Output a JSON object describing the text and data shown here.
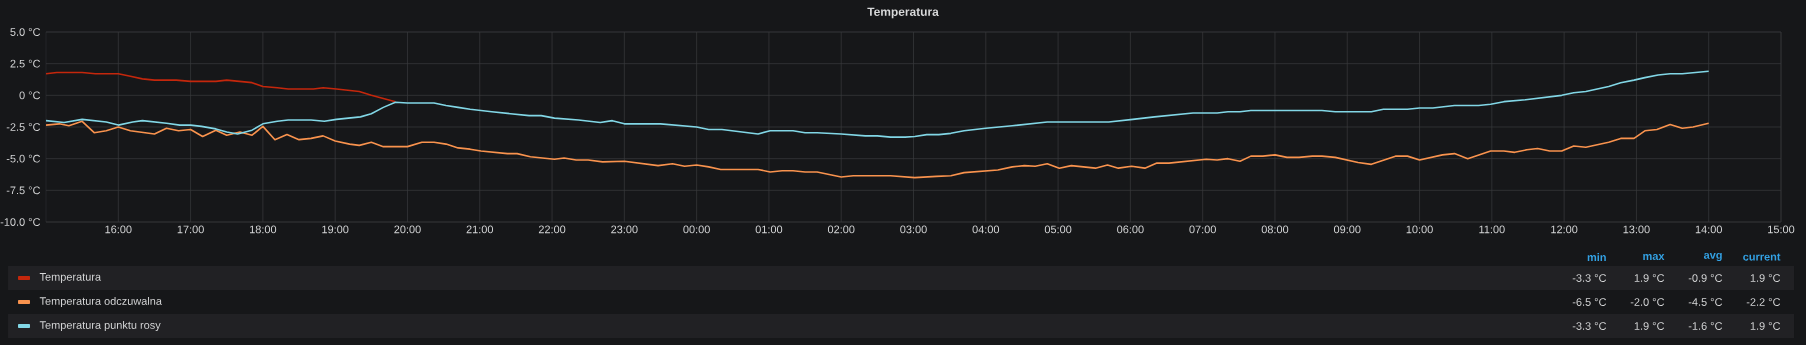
{
  "chart_data": {
    "type": "line",
    "title": "Temperatura",
    "xlim": [
      "2000-01-01T15:00",
      "2000-01-02T15:00"
    ],
    "ylim": [
      -10,
      5
    ],
    "xticks": [
      {
        "value": "2000-01-01T16:00",
        "label": "16:00"
      },
      {
        "value": "2000-01-01T17:00",
        "label": "17:00"
      },
      {
        "value": "2000-01-01T18:00",
        "label": "18:00"
      },
      {
        "value": "2000-01-01T19:00",
        "label": "19:00"
      },
      {
        "value": "2000-01-01T20:00",
        "label": "20:00"
      },
      {
        "value": "2000-01-01T21:00",
        "label": "21:00"
      },
      {
        "value": "2000-01-01T22:00",
        "label": "22:00"
      },
      {
        "value": "2000-01-01T23:00",
        "label": "23:00"
      },
      {
        "value": "2000-01-02T00:00",
        "label": "00:00"
      },
      {
        "value": "2000-01-02T01:00",
        "label": "01:00"
      },
      {
        "value": "2000-01-02T02:00",
        "label": "02:00"
      },
      {
        "value": "2000-01-02T03:00",
        "label": "03:00"
      },
      {
        "value": "2000-01-02T04:00",
        "label": "04:00"
      },
      {
        "value": "2000-01-02T05:00",
        "label": "05:00"
      },
      {
        "value": "2000-01-02T06:00",
        "label": "06:00"
      },
      {
        "value": "2000-01-02T07:00",
        "label": "07:00"
      },
      {
        "value": "2000-01-02T08:00",
        "label": "08:00"
      },
      {
        "value": "2000-01-02T09:00",
        "label": "09:00"
      },
      {
        "value": "2000-01-02T10:00",
        "label": "10:00"
      },
      {
        "value": "2000-01-02T11:00",
        "label": "11:00"
      },
      {
        "value": "2000-01-02T12:00",
        "label": "12:00"
      },
      {
        "value": "2000-01-02T13:00",
        "label": "13:00"
      },
      {
        "value": "2000-01-02T14:00",
        "label": "14:00"
      },
      {
        "value": "2000-01-02T15:00",
        "label": "15:00"
      }
    ],
    "yticks": [
      {
        "value": 5,
        "label": "5.0 °C"
      },
      {
        "value": 2.5,
        "label": "2.5 °C"
      },
      {
        "value": 0,
        "label": "0 °C"
      },
      {
        "value": -2.5,
        "label": "-2.5 °C"
      },
      {
        "value": -5,
        "label": "-5.0 °C"
      },
      {
        "value": -7.5,
        "label": "-7.5 °C"
      },
      {
        "value": -10,
        "label": "-10.0 °C"
      }
    ],
    "grid": true,
    "legend": "bottom",
    "marker": "none",
    "line_style": "solid",
    "series": [
      {
        "name": "Temperatura",
        "color": "#c4270c",
        "x": [
          "2000-01-01T15:00",
          "2000-01-01T15:09",
          "2000-01-01T15:30",
          "2000-01-01T15:41",
          "2000-01-01T16:00",
          "2000-01-01T16:10",
          "2000-01-01T16:20",
          "2000-01-01T16:30",
          "2000-01-01T16:48",
          "2000-01-01T17:00",
          "2000-01-01T17:21",
          "2000-01-01T17:30",
          "2000-01-01T17:51",
          "2000-01-01T18:00",
          "2000-01-01T18:12",
          "2000-01-01T18:21",
          "2000-01-01T18:42",
          "2000-01-01T18:50",
          "2000-01-01T19:01",
          "2000-01-01T19:20",
          "2000-01-01T19:30",
          "2000-01-01T19:40",
          "2000-01-01T19:50"
        ],
        "values": [
          1.7,
          1.8,
          1.8,
          1.7,
          1.7,
          1.5,
          1.3,
          1.2,
          1.2,
          1.1,
          1.1,
          1.2,
          1.0,
          0.7,
          0.6,
          0.5,
          0.5,
          0.6,
          0.5,
          0.3,
          0.0,
          -0.25,
          -0.5
        ]
      },
      {
        "name": "Temperatura odczuwalna",
        "color": "#f9934e",
        "x": [
          "2000-01-01T15:00",
          "2000-01-01T15:11",
          "2000-01-01T15:19",
          "2000-01-01T15:30",
          "2000-01-01T15:40",
          "2000-01-01T15:50",
          "2000-01-01T16:00",
          "2000-01-01T16:10",
          "2000-01-01T16:30",
          "2000-01-01T16:40",
          "2000-01-01T16:50",
          "2000-01-01T17:00",
          "2000-01-01T17:10",
          "2000-01-01T17:21",
          "2000-01-01T17:30",
          "2000-01-01T17:41",
          "2000-01-01T17:51",
          "2000-01-01T18:00",
          "2000-01-01T18:10",
          "2000-01-01T18:20",
          "2000-01-01T18:30",
          "2000-01-01T18:40",
          "2000-01-01T18:50",
          "2000-01-01T19:00",
          "2000-01-01T19:12",
          "2000-01-01T19:20",
          "2000-01-01T19:30",
          "2000-01-01T19:40",
          "2000-01-01T20:00",
          "2000-01-01T20:12",
          "2000-01-01T20:22",
          "2000-01-01T20:32",
          "2000-01-01T20:42",
          "2000-01-01T20:52",
          "2000-01-01T21:01",
          "2000-01-01T21:23",
          "2000-01-01T21:31",
          "2000-01-01T21:42",
          "2000-01-01T22:02",
          "2000-01-01T22:10",
          "2000-01-01T22:20",
          "2000-01-01T22:30",
          "2000-01-01T22:42",
          "2000-01-01T23:00",
          "2000-01-01T23:28",
          "2000-01-01T23:40",
          "2000-01-01T23:50",
          "2000-01-02T00:00",
          "2000-01-02T00:10",
          "2000-01-02T00:20",
          "2000-01-02T00:51",
          "2000-01-02T01:01",
          "2000-01-02T01:11",
          "2000-01-02T01:20",
          "2000-01-02T01:30",
          "2000-01-02T01:40",
          "2000-01-02T02:00",
          "2000-01-02T02:10",
          "2000-01-02T02:41",
          "2000-01-02T03:01",
          "2000-01-02T03:19",
          "2000-01-02T03:31",
          "2000-01-02T03:42",
          "2000-01-02T04:10",
          "2000-01-02T04:22",
          "2000-01-02T04:32",
          "2000-01-02T04:41",
          "2000-01-02T04:51",
          "2000-01-02T05:01",
          "2000-01-02T05:11",
          "2000-01-02T05:31",
          "2000-01-02T05:41",
          "2000-01-02T05:50",
          "2000-01-02T06:01",
          "2000-01-02T06:12",
          "2000-01-02T06:22",
          "2000-01-02T06:32",
          "2000-01-02T07:03",
          "2000-01-02T07:12",
          "2000-01-02T07:21",
          "2000-01-02T07:31",
          "2000-01-02T07:40",
          "2000-01-02T07:50",
          "2000-01-02T08:00",
          "2000-01-02T08:10",
          "2000-01-02T08:20",
          "2000-01-02T08:31",
          "2000-01-02T08:39",
          "2000-01-02T08:50",
          "2000-01-02T09:09",
          "2000-01-02T09:20",
          "2000-01-02T09:40",
          "2000-01-02T09:50",
          "2000-01-02T10:00",
          "2000-01-02T10:19",
          "2000-01-02T10:29",
          "2000-01-02T10:40",
          "2000-01-02T10:59",
          "2000-01-02T11:10",
          "2000-01-02T11:19",
          "2000-01-02T11:29",
          "2000-01-02T11:38",
          "2000-01-02T11:48",
          "2000-01-02T11:58",
          "2000-01-02T12:08",
          "2000-01-02T12:18",
          "2000-01-02T12:37",
          "2000-01-02T12:47",
          "2000-01-02T12:58",
          "2000-01-02T13:07",
          "2000-01-02T13:17",
          "2000-01-02T13:28",
          "2000-01-02T13:38",
          "2000-01-02T13:47",
          "2000-01-02T14:00"
        ],
        "values": [
          -2.35,
          -2.25,
          -2.4,
          -2.05,
          -2.95,
          -2.8,
          -2.5,
          -2.8,
          -3.05,
          -2.6,
          -2.8,
          -2.7,
          -3.25,
          -2.75,
          -3.15,
          -2.9,
          -3.15,
          -2.45,
          -3.5,
          -3.1,
          -3.5,
          -3.4,
          -3.2,
          -3.6,
          -3.85,
          -3.95,
          -3.7,
          -4.05,
          -4.05,
          -3.7,
          -3.7,
          -3.85,
          -4.15,
          -4.25,
          -4.4,
          -4.6,
          -4.6,
          -4.85,
          -5.05,
          -4.95,
          -5.1,
          -5.1,
          -5.25,
          -5.2,
          -5.55,
          -5.4,
          -5.6,
          -5.5,
          -5.65,
          -5.85,
          -5.85,
          -6.05,
          -5.95,
          -5.95,
          -6.05,
          -6.05,
          -6.45,
          -6.35,
          -6.35,
          -6.5,
          -6.4,
          -6.35,
          -6.1,
          -5.9,
          -5.65,
          -5.55,
          -5.6,
          -5.4,
          -5.75,
          -5.55,
          -5.75,
          -5.5,
          -5.75,
          -5.6,
          -5.75,
          -5.35,
          -5.35,
          -5.05,
          -5.1,
          -5.0,
          -5.2,
          -4.8,
          -4.8,
          -4.7,
          -4.9,
          -4.9,
          -4.8,
          -4.8,
          -4.9,
          -5.3,
          -5.45,
          -4.8,
          -4.8,
          -5.1,
          -4.7,
          -4.6,
          -5.0,
          -4.4,
          -4.4,
          -4.5,
          -4.3,
          -4.2,
          -4.4,
          -4.4,
          -4.0,
          -4.1,
          -3.7,
          -3.4,
          -3.4,
          -2.8,
          -2.7,
          -2.3,
          -2.6,
          -2.5,
          -2.2
        ]
      },
      {
        "name": "Temperatura punktu rosy",
        "color": "#82d7e6",
        "x": [
          "2000-01-01T15:00",
          "2000-01-01T15:15",
          "2000-01-01T15:30",
          "2000-01-01T15:50",
          "2000-01-01T16:00",
          "2000-01-01T16:12",
          "2000-01-01T16:20",
          "2000-01-01T16:40",
          "2000-01-01T16:51",
          "2000-01-01T17:00",
          "2000-01-01T17:09",
          "2000-01-01T17:21",
          "2000-01-01T17:30",
          "2000-01-01T17:39",
          "2000-01-01T17:51",
          "2000-01-01T18:00",
          "2000-01-01T18:12",
          "2000-01-01T18:21",
          "2000-01-01T18:40",
          "2000-01-01T18:51",
          "2000-01-01T19:01",
          "2000-01-01T19:21",
          "2000-01-01T19:30",
          "2000-01-01T19:40",
          "2000-01-01T19:50",
          "2000-01-01T20:00",
          "2000-01-01T20:22",
          "2000-01-01T20:32",
          "2000-01-01T20:42",
          "2000-01-01T20:52",
          "2000-01-01T21:10",
          "2000-01-01T21:41",
          "2000-01-01T21:51",
          "2000-01-01T22:02",
          "2000-01-01T22:22",
          "2000-01-01T22:40",
          "2000-01-01T22:50",
          "2000-01-01T23:00",
          "2000-01-01T23:30",
          "2000-01-02T00:00",
          "2000-01-02T00:10",
          "2000-01-02T00:21",
          "2000-01-02T00:51",
          "2000-01-02T01:01",
          "2000-01-02T01:20",
          "2000-01-02T01:30",
          "2000-01-02T01:40",
          "2000-01-02T02:00",
          "2000-01-02T02:20",
          "2000-01-02T02:30",
          "2000-01-02T02:41",
          "2000-01-02T02:53",
          "2000-01-02T03:01",
          "2000-01-02T03:11",
          "2000-01-02T03:21",
          "2000-01-02T03:31",
          "2000-01-02T03:42",
          "2000-01-02T04:00",
          "2000-01-02T04:22",
          "2000-01-02T04:51",
          "2000-01-02T05:42",
          "2000-01-02T06:02",
          "2000-01-02T06:20",
          "2000-01-02T06:52",
          "2000-01-02T07:12",
          "2000-01-02T07:21",
          "2000-01-02T07:31",
          "2000-01-02T07:40",
          "2000-01-02T08:39",
          "2000-01-02T08:50",
          "2000-01-02T09:20",
          "2000-01-02T09:30",
          "2000-01-02T09:50",
          "2000-01-02T10:00",
          "2000-01-02T10:11",
          "2000-01-02T10:29",
          "2000-01-02T10:49",
          "2000-01-02T10:59",
          "2000-01-02T11:10",
          "2000-01-02T11:28",
          "2000-01-02T11:58",
          "2000-01-02T12:08",
          "2000-01-02T12:18",
          "2000-01-02T12:37",
          "2000-01-02T12:47",
          "2000-01-02T12:58",
          "2000-01-02T13:07",
          "2000-01-02T13:18",
          "2000-01-02T13:28",
          "2000-01-02T13:38",
          "2000-01-02T14:00"
        ],
        "values": [
          -2.0,
          -2.15,
          -1.9,
          -2.1,
          -2.35,
          -2.1,
          -2.0,
          -2.2,
          -2.35,
          -2.35,
          -2.45,
          -2.65,
          -2.9,
          -3.05,
          -2.75,
          -2.25,
          -2.05,
          -1.95,
          -1.95,
          -2.05,
          -1.9,
          -1.7,
          -1.45,
          -0.95,
          -0.55,
          -0.6,
          -0.6,
          -0.8,
          -0.95,
          -1.1,
          -1.3,
          -1.6,
          -1.6,
          -1.8,
          -1.95,
          -2.15,
          -2.0,
          -2.25,
          -2.25,
          -2.5,
          -2.7,
          -2.7,
          -3.05,
          -2.8,
          -2.8,
          -2.95,
          -2.95,
          -3.05,
          -3.2,
          -3.2,
          -3.3,
          -3.3,
          -3.25,
          -3.1,
          -3.1,
          -3.0,
          -2.8,
          -2.6,
          -2.4,
          -2.1,
          -2.1,
          -1.9,
          -1.7,
          -1.4,
          -1.4,
          -1.3,
          -1.3,
          -1.2,
          -1.2,
          -1.3,
          -1.3,
          -1.1,
          -1.1,
          -1.0,
          -1.0,
          -0.8,
          -0.8,
          -0.7,
          -0.5,
          -0.35,
          0.0,
          0.2,
          0.3,
          0.7,
          1.0,
          1.2,
          1.4,
          1.6,
          1.7,
          1.7,
          1.9
        ]
      }
    ],
    "annotations": [
      "min",
      "max",
      "avg",
      "current",
      "-3.3 °C",
      "1.9 °C",
      "-0.9 °C",
      "1.9 °C",
      "-6.5 °C",
      "-2.0 °C",
      "-4.5 °C",
      "-2.2 °C",
      "-3.3 °C",
      "1.9 °C",
      "-1.6 °C",
      "1.9 °C"
    ]
  }
}
